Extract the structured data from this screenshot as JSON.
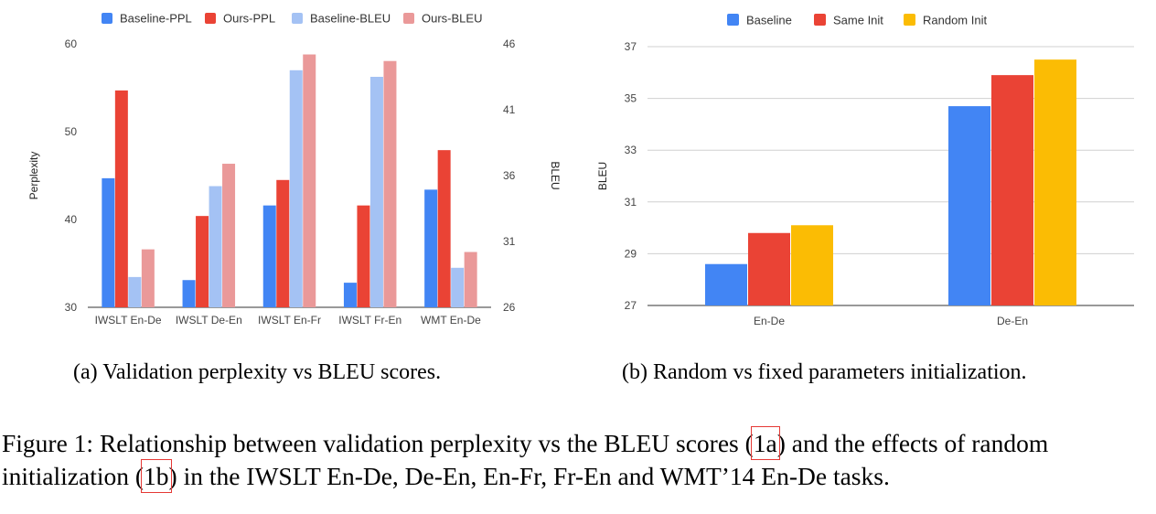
{
  "chart_data": [
    {
      "type": "bar",
      "id": "a",
      "categories": [
        "IWSLT En-De",
        "IWSLT De-En",
        "IWSLT En-Fr",
        "IWSLT Fr-En",
        "WMT En-De"
      ],
      "series": [
        {
          "name": "Baseline-PPL",
          "axis": "left",
          "color": "#4285f4",
          "values": [
            44.7,
            33.1,
            41.6,
            32.8,
            43.4
          ]
        },
        {
          "name": "Ours-PPL",
          "axis": "left",
          "color": "#ea4335",
          "values": [
            54.7,
            40.4,
            44.5,
            41.6,
            47.9
          ]
        },
        {
          "name": "Baseline-BLEU",
          "axis": "right",
          "color": "#a4c2f4",
          "values": [
            28.3,
            35.2,
            44.0,
            43.5,
            29.0
          ]
        },
        {
          "name": "Ours-BLEU",
          "axis": "right",
          "color": "#ea9999",
          "values": [
            30.4,
            36.9,
            45.2,
            44.7,
            30.2
          ]
        }
      ],
      "ylabel": "Perplexity",
      "ylim": [
        30,
        60
      ],
      "yticks": [
        30,
        40,
        50,
        60
      ],
      "y2label": "BLEU",
      "y2lim": [
        26,
        46
      ],
      "y2ticks": [
        26,
        31,
        36,
        41,
        46
      ],
      "legend": "top"
    },
    {
      "type": "bar",
      "id": "b",
      "categories": [
        "En-De",
        "De-En"
      ],
      "series": [
        {
          "name": "Baseline",
          "color": "#4285f4",
          "values": [
            28.6,
            34.7
          ]
        },
        {
          "name": "Same Init",
          "color": "#ea4335",
          "values": [
            29.8,
            35.9
          ]
        },
        {
          "name": "Random Init",
          "color": "#fbbc04",
          "values": [
            30.1,
            36.5
          ]
        }
      ],
      "ylabel": "BLEU",
      "ylim": [
        27,
        37
      ],
      "yticks": [
        27,
        29,
        31,
        33,
        35,
        37
      ],
      "grid": true,
      "legend": "top"
    }
  ],
  "captions": {
    "a": "(a) Validation perplexity vs BLEU scores.",
    "b": "(b) Random vs fixed parameters initialization."
  },
  "figure_caption": {
    "part1": "Figure 1: Relationship between validation perplexity vs the BLEU scores (",
    "ref_a": "1a",
    "part2": ") and the effects of random initialization (",
    "ref_b": "1b",
    "part3": ") in the IWSLT En-De, De-En, En-Fr, Fr-En and WMT’14 En-De tasks."
  }
}
